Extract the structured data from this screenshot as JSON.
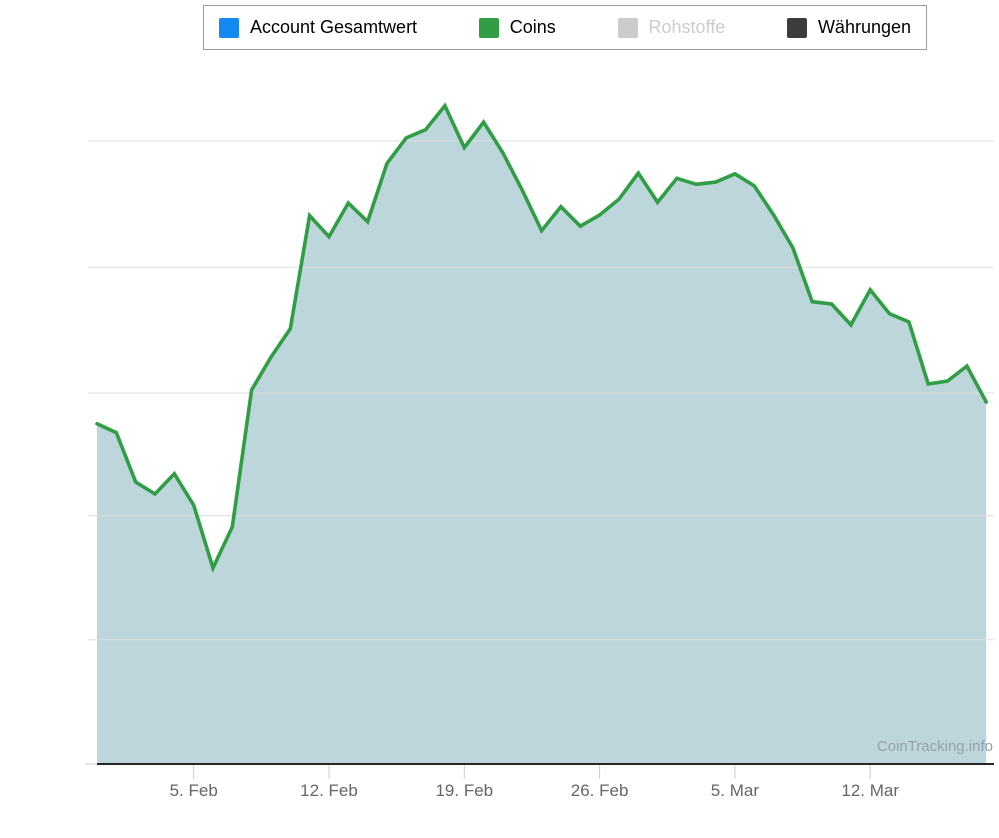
{
  "legend": {
    "items": [
      {
        "label": "Account Gesamtwert",
        "color": "#1289f3",
        "label_color": "#000000",
        "enabled": true
      },
      {
        "label": "Coins",
        "color": "#2f9e44",
        "label_color": "#000000",
        "enabled": true
      },
      {
        "label": "Rohstoffe",
        "color": "#cccccc",
        "label_color": "#cccccc",
        "enabled": false
      },
      {
        "label": "Währungen",
        "color": "#3d3d3d",
        "label_color": "#000000",
        "enabled": true
      }
    ]
  },
  "watermark": "CoinTracking.info",
  "chart_data": {
    "type": "area",
    "title": "",
    "xlabel": "",
    "ylabel": "",
    "legend_position": "top",
    "grid": "horizontal-only",
    "ylim": [
      0,
      100
    ],
    "grid_values": [
      16.6,
      33.2,
      49.6,
      66.4,
      83.3
    ],
    "x_tick_labels": [
      "5. Feb",
      "12. Feb",
      "19. Feb",
      "26. Feb",
      "5. Mar",
      "12. Mar"
    ],
    "series": [
      {
        "name": "Coins",
        "color": "#2f9e44",
        "fill_color": "#bdd6db",
        "dates": [
          "31. Jan",
          "1. Feb",
          "2. Feb",
          "3. Feb",
          "4. Feb",
          "5. Feb",
          "6. Feb",
          "7. Feb",
          "8. Feb",
          "9. Feb",
          "10. Feb",
          "11. Feb",
          "12. Feb",
          "13. Feb",
          "14. Feb",
          "15. Feb",
          "16. Feb",
          "17. Feb",
          "18. Feb",
          "19. Feb",
          "20. Feb",
          "21. Feb",
          "22. Feb",
          "23. Feb",
          "24. Feb",
          "25. Feb",
          "26. Feb",
          "27. Feb",
          "28. Feb",
          "1. Mar",
          "2. Mar",
          "3. Mar",
          "4. Mar",
          "5. Mar",
          "6. Mar",
          "7. Mar",
          "8. Mar",
          "9. Mar",
          "10. Mar",
          "11. Mar",
          "12. Mar",
          "13. Mar",
          "14. Mar",
          "15. Mar",
          "16. Mar",
          "17. Mar",
          "18. Mar"
        ],
        "values": [
          45.5,
          44.3,
          37.7,
          36.1,
          38.8,
          34.6,
          26.2,
          31.7,
          50.0,
          54.4,
          58.2,
          73.3,
          70.5,
          75.0,
          72.5,
          80.3,
          83.7,
          84.8,
          88.0,
          82.4,
          85.8,
          81.7,
          76.7,
          71.3,
          74.5,
          71.9,
          73.4,
          75.5,
          79.0,
          75.1,
          78.3,
          77.5,
          77.8,
          78.9,
          77.3,
          73.4,
          69.0,
          61.8,
          61.5,
          58.7,
          63.4,
          60.2,
          59.1,
          50.8,
          51.2,
          53.2,
          48.4
        ]
      }
    ],
    "colors": {
      "grid_color": "#dedede",
      "axis_color": "#262626",
      "tick_color": "#cccccc",
      "label_color": "#666666",
      "watermark_color": "#93a1a8"
    }
  }
}
